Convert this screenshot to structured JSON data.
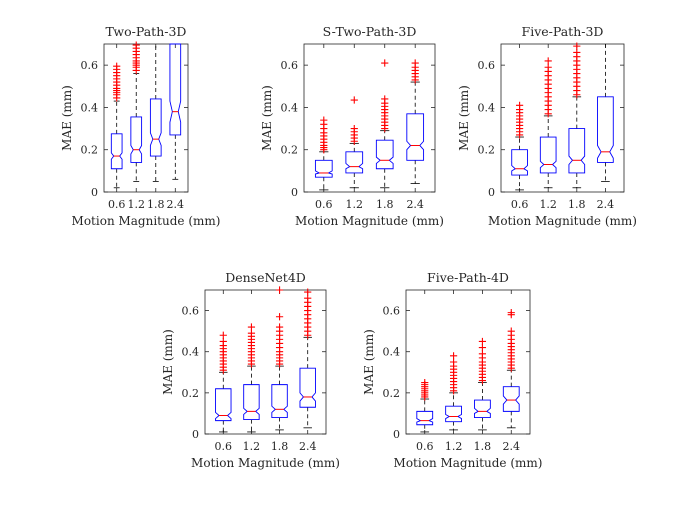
{
  "chart_data": [
    {
      "type": "box",
      "title": "Two-Path-3D",
      "xlabel": "Motion Magnitude (mm)",
      "ylabel": "MAE (mm)",
      "ylim": [
        0,
        0.7
      ],
      "yticks": [
        "0",
        "0.2",
        "0.4",
        "0.6"
      ],
      "categories": [
        "0.6",
        "1.2",
        "1.8",
        "2.4"
      ],
      "boxes": [
        {
          "min": 0.02,
          "q1": 0.11,
          "median": 0.17,
          "q3": 0.275,
          "max": 0.43,
          "notch": [
            0.155,
            0.185
          ],
          "outliers": [
            0.445,
            0.46,
            0.47,
            0.48,
            0.49,
            0.505,
            0.52,
            0.535,
            0.55,
            0.565,
            0.58,
            0.595
          ]
        },
        {
          "min": 0.05,
          "q1": 0.14,
          "median": 0.2,
          "q3": 0.355,
          "max": 0.56,
          "notch": [
            0.18,
            0.22
          ],
          "outliers": [
            0.575,
            0.59,
            0.6,
            0.61,
            0.62,
            0.635,
            0.65,
            0.665,
            0.68,
            0.695
          ]
        },
        {
          "min": 0.05,
          "q1": 0.17,
          "median": 0.25,
          "q3": 0.44,
          "max": 0.7,
          "notch": [
            0.22,
            0.28
          ],
          "outliers": []
        },
        {
          "min": 0.06,
          "q1": 0.27,
          "median": 0.38,
          "q3": 0.7,
          "max": 0.7,
          "notch": [
            0.33,
            0.43
          ],
          "outliers": []
        }
      ]
    },
    {
      "type": "box",
      "title": "S-Two-Path-3D",
      "xlabel": "Motion Magnitude (mm)",
      "ylabel": "MAE (mm)",
      "ylim": [
        0,
        0.7
      ],
      "yticks": [
        "0",
        "0.2",
        "0.4",
        "0.6"
      ],
      "categories": [
        "0.6",
        "1.2",
        "1.8",
        "2.4"
      ],
      "boxes": [
        {
          "min": 0.01,
          "q1": 0.07,
          "median": 0.09,
          "q3": 0.15,
          "max": 0.19,
          "notch": [
            0.085,
            0.1
          ],
          "outliers": [
            0.2,
            0.21,
            0.22,
            0.235,
            0.25,
            0.265,
            0.28,
            0.3,
            0.32,
            0.34
          ]
        },
        {
          "min": 0.02,
          "q1": 0.09,
          "median": 0.12,
          "q3": 0.19,
          "max": 0.23,
          "notch": [
            0.11,
            0.135
          ],
          "outliers": [
            0.24,
            0.255,
            0.27,
            0.285,
            0.3,
            0.435
          ]
        },
        {
          "min": 0.02,
          "q1": 0.11,
          "median": 0.15,
          "q3": 0.245,
          "max": 0.29,
          "notch": [
            0.135,
            0.165
          ],
          "outliers": [
            0.3,
            0.315,
            0.33,
            0.345,
            0.36,
            0.375,
            0.39,
            0.405,
            0.42,
            0.44,
            0.61
          ]
        },
        {
          "min": 0.04,
          "q1": 0.15,
          "median": 0.22,
          "q3": 0.37,
          "max": 0.52,
          "notch": [
            0.2,
            0.24
          ],
          "outliers": [
            0.53,
            0.545,
            0.56,
            0.575,
            0.59,
            0.61
          ]
        }
      ]
    },
    {
      "type": "box",
      "title": "Five-Path-3D",
      "xlabel": "Motion Magnitude (mm)",
      "ylabel": "MAE (mm)",
      "ylim": [
        0,
        0.7
      ],
      "yticks": [
        "0",
        "0.2",
        "0.4",
        "0.6"
      ],
      "categories": [
        "0.6",
        "1.2",
        "1.8",
        "2.4"
      ],
      "boxes": [
        {
          "min": 0.01,
          "q1": 0.08,
          "median": 0.11,
          "q3": 0.2,
          "max": 0.26,
          "notch": [
            0.1,
            0.125
          ],
          "outliers": [
            0.27,
            0.285,
            0.3,
            0.315,
            0.33,
            0.345,
            0.36,
            0.375,
            0.39,
            0.41
          ]
        },
        {
          "min": 0.02,
          "q1": 0.09,
          "median": 0.13,
          "q3": 0.26,
          "max": 0.36,
          "notch": [
            0.115,
            0.145
          ],
          "outliers": [
            0.37,
            0.39,
            0.41,
            0.43,
            0.45,
            0.47,
            0.49,
            0.51,
            0.53,
            0.55,
            0.57,
            0.59,
            0.62
          ]
        },
        {
          "min": 0.02,
          "q1": 0.09,
          "median": 0.15,
          "q3": 0.3,
          "max": 0.45,
          "notch": [
            0.13,
            0.17
          ],
          "outliers": [
            0.46,
            0.48,
            0.5,
            0.52,
            0.54,
            0.56,
            0.58,
            0.6,
            0.62,
            0.64,
            0.66,
            0.69
          ]
        },
        {
          "min": 0.05,
          "q1": 0.14,
          "median": 0.19,
          "q3": 0.45,
          "max": 0.7,
          "notch": [
            0.16,
            0.22
          ],
          "outliers": []
        }
      ]
    },
    {
      "type": "box",
      "title": "DenseNet4D",
      "xlabel": "Motion Magnitude (mm)",
      "ylabel": "MAE (mm)",
      "ylim": [
        0,
        0.7
      ],
      "yticks": [
        "0",
        "0.2",
        "0.4",
        "0.6"
      ],
      "categories": [
        "0.6",
        "1.2",
        "1.8",
        "2.4"
      ],
      "boxes": [
        {
          "min": 0.01,
          "q1": 0.065,
          "median": 0.09,
          "q3": 0.22,
          "max": 0.3,
          "notch": [
            0.075,
            0.105
          ],
          "outliers": [
            0.31,
            0.325,
            0.34,
            0.355,
            0.37,
            0.385,
            0.4,
            0.415,
            0.43,
            0.45,
            0.48
          ]
        },
        {
          "min": 0.01,
          "q1": 0.07,
          "median": 0.11,
          "q3": 0.24,
          "max": 0.33,
          "notch": [
            0.095,
            0.125
          ],
          "outliers": [
            0.34,
            0.355,
            0.37,
            0.385,
            0.4,
            0.415,
            0.43,
            0.445,
            0.46,
            0.475,
            0.49,
            0.52
          ]
        },
        {
          "min": 0.02,
          "q1": 0.08,
          "median": 0.12,
          "q3": 0.24,
          "max": 0.33,
          "notch": [
            0.105,
            0.135
          ],
          "outliers": [
            0.34,
            0.355,
            0.37,
            0.385,
            0.4,
            0.42,
            0.44,
            0.46,
            0.48,
            0.5,
            0.52,
            0.57,
            0.7
          ]
        },
        {
          "min": 0.03,
          "q1": 0.13,
          "median": 0.18,
          "q3": 0.32,
          "max": 0.47,
          "notch": [
            0.16,
            0.2
          ],
          "outliers": [
            0.48,
            0.5,
            0.52,
            0.54,
            0.56,
            0.58,
            0.6,
            0.62,
            0.64,
            0.66,
            0.69
          ]
        }
      ]
    },
    {
      "type": "box",
      "title": "Five-Path-4D",
      "xlabel": "Motion Magnitude (mm)",
      "ylabel": "MAE (mm)",
      "ylim": [
        0,
        0.7
      ],
      "yticks": [
        "0",
        "0.2",
        "0.4",
        "0.6"
      ],
      "categories": [
        "0.6",
        "1.2",
        "1.8",
        "2.4"
      ],
      "boxes": [
        {
          "min": 0.01,
          "q1": 0.045,
          "median": 0.065,
          "q3": 0.11,
          "max": 0.17,
          "notch": [
            0.058,
            0.075
          ],
          "outliers": [
            0.18,
            0.19,
            0.2,
            0.21,
            0.22,
            0.23,
            0.24,
            0.25
          ]
        },
        {
          "min": 0.02,
          "q1": 0.06,
          "median": 0.085,
          "q3": 0.135,
          "max": 0.2,
          "notch": [
            0.075,
            0.095
          ],
          "outliers": [
            0.21,
            0.225,
            0.24,
            0.255,
            0.27,
            0.285,
            0.3,
            0.315,
            0.33,
            0.35,
            0.38
          ]
        },
        {
          "min": 0.02,
          "q1": 0.08,
          "median": 0.11,
          "q3": 0.165,
          "max": 0.25,
          "notch": [
            0.1,
            0.125
          ],
          "outliers": [
            0.26,
            0.275,
            0.29,
            0.305,
            0.32,
            0.335,
            0.35,
            0.37,
            0.39,
            0.42,
            0.45
          ]
        },
        {
          "min": 0.03,
          "q1": 0.11,
          "median": 0.165,
          "q3": 0.23,
          "max": 0.31,
          "notch": [
            0.145,
            0.185
          ],
          "outliers": [
            0.32,
            0.335,
            0.35,
            0.365,
            0.38,
            0.395,
            0.41,
            0.425,
            0.44,
            0.46,
            0.48,
            0.5,
            0.58,
            0.59
          ]
        }
      ]
    }
  ]
}
